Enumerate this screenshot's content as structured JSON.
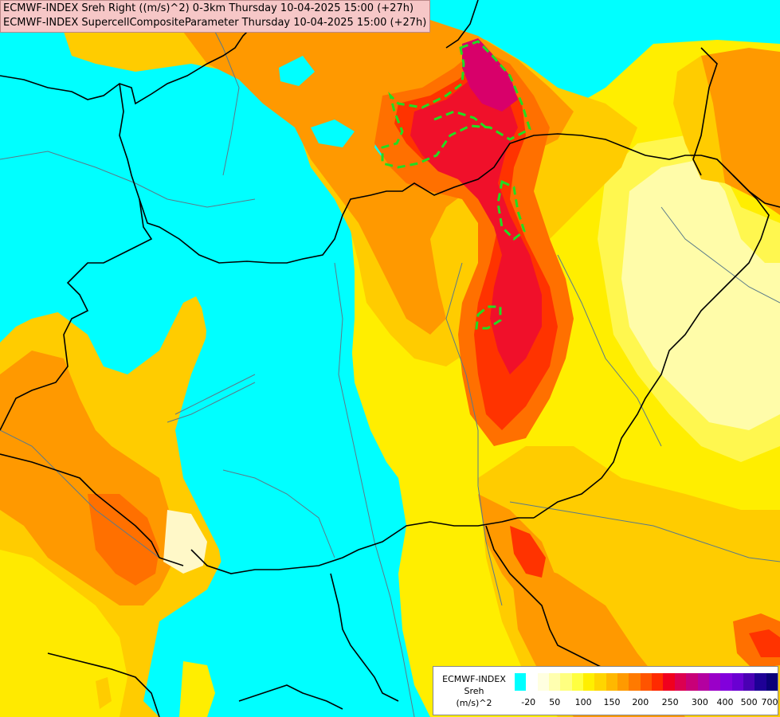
{
  "titles": {
    "line1": "ECMWF-INDEX Sreh Right ((m/s)^2) 0-3km Thursday 10-04-2025 15:00 (+27h)",
    "line2": "ECMWF-INDEX SupercellCompositeParameter Thursday 10-04-2025 15:00 (+27h)"
  },
  "legend": {
    "model": "ECMWF-INDEX",
    "param": "Sreh",
    "unit": "(m/s)^2",
    "colors": [
      "#00ffff",
      "#ffffff",
      "#ffffe0",
      "#ffffb0",
      "#ffff80",
      "#ffff40",
      "#ffef00",
      "#ffd500",
      "#ffb800",
      "#ff9a00",
      "#ff7a00",
      "#ff5400",
      "#ff2a00",
      "#f0001e",
      "#dc0050",
      "#c80078",
      "#b400a0",
      "#9a00c8",
      "#8200dc",
      "#6a00d2",
      "#4a00b4",
      "#1e0096",
      "#0a0078"
    ],
    "ticks": [
      "-20",
      "50",
      "100",
      "150",
      "200",
      "250",
      "300",
      "400",
      "500",
      "700"
    ]
  },
  "map": {
    "colors": {
      "cyan": "#00ffff",
      "pale": "#fff8c8",
      "lightyellow": "#ffff90",
      "yellow": "#ffee00",
      "gold": "#ffcc00",
      "orange": "#ff9900",
      "darkorange": "#ff7000",
      "red": "#ff3300",
      "crimson": "#f0102a",
      "magenta": "#d8006a",
      "scp": "#22dd22",
      "border": "#000000",
      "river": "#5a7a8a"
    }
  }
}
